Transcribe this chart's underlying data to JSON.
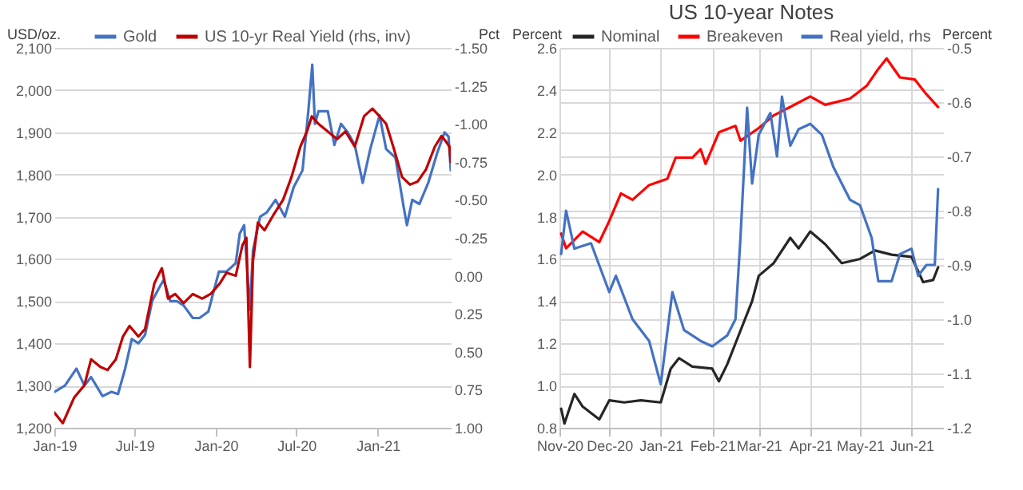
{
  "chart_data": [
    {
      "type": "line",
      "ylabel": "USD/oz.",
      "y2label": "Pct",
      "legend": "top",
      "grid": "y",
      "xlim": [
        "2019-01-01",
        "2021-06-15"
      ],
      "xticks": [
        {
          "value": "2019-01-01",
          "label": "Jan-19"
        },
        {
          "value": "2019-07-01",
          "label": "Jul-19"
        },
        {
          "value": "2020-01-01",
          "label": "Jan-20"
        },
        {
          "value": "2020-07-01",
          "label": "Jul-20"
        },
        {
          "value": "2021-01-01",
          "label": "Jan-21"
        }
      ],
      "ylim": [
        1200,
        2100
      ],
      "yticks": [
        {
          "value": 1200,
          "label": "1,200"
        },
        {
          "value": 1300,
          "label": "1,300"
        },
        {
          "value": 1400,
          "label": "1,400"
        },
        {
          "value": 1500,
          "label": "1,500"
        },
        {
          "value": 1600,
          "label": "1,600"
        },
        {
          "value": 1700,
          "label": "1,700"
        },
        {
          "value": 1800,
          "label": "1,800"
        },
        {
          "value": 1900,
          "label": "1,900"
        },
        {
          "value": 2000,
          "label": "2,000"
        },
        {
          "value": 2100,
          "label": "2,100"
        }
      ],
      "y2lim": [
        1.0,
        -1.5
      ],
      "y2ticks": [
        {
          "value": 1,
          "label": "1.00"
        },
        0.75,
        {
          "value": 0.5,
          "label": "0.50"
        },
        0.25,
        {
          "value": 0,
          "label": "0.00"
        },
        -0.25,
        {
          "value": -0.5,
          "label": "-0.50"
        },
        -0.75,
        {
          "value": -1,
          "label": "-1.00"
        },
        -1.25,
        {
          "value": -1.5,
          "label": "-1.50"
        }
      ],
      "series": [
        {
          "name": "Gold",
          "color": "#4472c4",
          "x": [
            "2019-01-01",
            "2019-01-25",
            "2019-02-20",
            "2019-03-10",
            "2019-03-25",
            "2019-04-20",
            "2019-05-10",
            "2019-05-25",
            "2019-06-10",
            "2019-06-25",
            "2019-07-10",
            "2019-07-25",
            "2019-08-10",
            "2019-08-25",
            "2019-09-05",
            "2019-09-20",
            "2019-10-05",
            "2019-10-20",
            "2019-11-10",
            "2019-11-25",
            "2019-12-15",
            "2020-01-08",
            "2020-01-25",
            "2020-02-15",
            "2020-02-24",
            "2020-03-05",
            "2020-03-18",
            "2020-03-25",
            "2020-04-10",
            "2020-04-25",
            "2020-05-15",
            "2020-06-05",
            "2020-06-25",
            "2020-07-15",
            "2020-07-28",
            "2020-08-06",
            "2020-08-12",
            "2020-08-20",
            "2020-09-10",
            "2020-09-25",
            "2020-10-10",
            "2020-10-25",
            "2020-11-10",
            "2020-11-28",
            "2020-12-15",
            "2021-01-05",
            "2021-01-20",
            "2021-02-10",
            "2021-03-01",
            "2021-03-08",
            "2021-03-20",
            "2021-04-05",
            "2021-04-25",
            "2021-05-15",
            "2021-06-01",
            "2021-06-10",
            "2021-06-15"
          ],
          "values": [
            1285,
            1300,
            1340,
            1300,
            1320,
            1275,
            1285,
            1280,
            1340,
            1410,
            1400,
            1420,
            1500,
            1530,
            1550,
            1500,
            1500,
            1490,
            1460,
            1460,
            1475,
            1570,
            1570,
            1590,
            1660,
            1680,
            1480,
            1620,
            1700,
            1710,
            1740,
            1700,
            1770,
            1810,
            1950,
            2060,
            1920,
            1950,
            1950,
            1870,
            1920,
            1900,
            1870,
            1780,
            1860,
            1940,
            1860,
            1840,
            1720,
            1680,
            1740,
            1730,
            1780,
            1850,
            1900,
            1890,
            1810
          ]
        },
        {
          "name": "US 10-yr Real Yield (rhs, inv)",
          "color": "#c00000",
          "axis": "y2",
          "x": [
            "2019-01-01",
            "2019-01-20",
            "2019-02-15",
            "2019-03-10",
            "2019-03-25",
            "2019-04-15",
            "2019-05-01",
            "2019-05-20",
            "2019-06-05",
            "2019-06-20",
            "2019-07-10",
            "2019-07-25",
            "2019-08-15",
            "2019-09-01",
            "2019-09-15",
            "2019-10-01",
            "2019-10-20",
            "2019-11-10",
            "2019-12-01",
            "2019-12-20",
            "2020-01-10",
            "2020-01-25",
            "2020-02-15",
            "2020-03-01",
            "2020-03-10",
            "2020-03-18",
            "2020-03-25",
            "2020-04-05",
            "2020-04-20",
            "2020-05-10",
            "2020-06-01",
            "2020-06-20",
            "2020-07-10",
            "2020-07-25",
            "2020-08-05",
            "2020-08-20",
            "2020-09-10",
            "2020-10-01",
            "2020-10-20",
            "2020-11-10",
            "2020-12-01",
            "2020-12-20",
            "2021-01-05",
            "2021-01-20",
            "2021-02-05",
            "2021-02-25",
            "2021-03-15",
            "2021-04-01",
            "2021-04-20",
            "2021-05-10",
            "2021-05-25",
            "2021-06-05",
            "2021-06-12",
            "2021-06-15"
          ],
          "values": [
            0.9,
            0.97,
            0.8,
            0.72,
            0.55,
            0.6,
            0.62,
            0.55,
            0.4,
            0.33,
            0.4,
            0.35,
            0.05,
            -0.05,
            0.15,
            0.12,
            0.18,
            0.12,
            0.15,
            0.12,
            0.05,
            -0.02,
            0.0,
            -0.2,
            -0.25,
            0.6,
            -0.1,
            -0.35,
            -0.3,
            -0.4,
            -0.5,
            -0.65,
            -0.85,
            -0.95,
            -1.05,
            -1.0,
            -0.95,
            -0.9,
            -0.95,
            -0.85,
            -1.05,
            -1.1,
            -1.05,
            -1.0,
            -0.85,
            -0.65,
            -0.6,
            -0.62,
            -0.7,
            -0.85,
            -0.92,
            -0.88,
            -0.85,
            -0.75
          ]
        }
      ]
    },
    {
      "type": "line",
      "title": "US 10-year Notes",
      "ylabel": "Percent",
      "y2label": "Percent",
      "legend": "top",
      "grid": true,
      "xlim": [
        "2020-11-01",
        "2021-06-20"
      ],
      "xticks": [
        {
          "value": "2020-11-01",
          "label": "Nov-20"
        },
        {
          "value": "2020-12-01",
          "label": "Dec-20"
        },
        {
          "value": "2021-01-01",
          "label": "Jan-21"
        },
        {
          "value": "2021-02-01",
          "label": "Feb-21"
        },
        {
          "value": "2021-03-01",
          "label": "Mar-21"
        },
        {
          "value": "2021-04-01",
          "label": "Apr-21"
        },
        {
          "value": "2021-05-01",
          "label": "May-21"
        },
        {
          "value": "2021-06-01",
          "label": "Jun-21"
        }
      ],
      "ylim": [
        0.8,
        2.6
      ],
      "yticks": [
        0.8,
        {
          "value": 1,
          "label": "1.0"
        },
        1.2,
        1.4,
        1.6,
        1.8,
        {
          "value": 2,
          "label": "2.0"
        },
        2.2,
        2.4,
        2.6
      ],
      "y2lim": [
        -1.2,
        -0.5
      ],
      "y2ticks": [
        -1.2,
        -1.1,
        {
          "value": -1,
          "label": "-1.0"
        },
        -0.9,
        -0.8,
        -0.7,
        -0.6,
        -0.5
      ],
      "series": [
        {
          "name": "Nominal",
          "color": "#262626",
          "x": [
            "2020-11-02",
            "2020-11-04",
            "2020-11-10",
            "2020-11-15",
            "2020-11-25",
            "2020-12-01",
            "2020-12-10",
            "2020-12-20",
            "2021-01-01",
            "2021-01-07",
            "2021-01-12",
            "2021-01-20",
            "2021-02-01",
            "2021-02-05",
            "2021-02-10",
            "2021-02-15",
            "2021-02-20",
            "2021-02-25",
            "2021-03-01",
            "2021-03-10",
            "2021-03-20",
            "2021-03-25",
            "2021-04-01",
            "2021-04-10",
            "2021-04-20",
            "2021-05-01",
            "2021-05-10",
            "2021-05-20",
            "2021-06-01",
            "2021-06-08",
            "2021-06-14",
            "2021-06-17"
          ],
          "values": [
            0.89,
            0.82,
            0.96,
            0.9,
            0.84,
            0.93,
            0.92,
            0.93,
            0.92,
            1.08,
            1.13,
            1.09,
            1.08,
            1.02,
            1.1,
            1.2,
            1.3,
            1.4,
            1.52,
            1.58,
            1.7,
            1.65,
            1.73,
            1.67,
            1.58,
            1.6,
            1.64,
            1.62,
            1.61,
            1.49,
            1.5,
            1.56
          ]
        },
        {
          "name": "Breakeven",
          "color": "#ff0000",
          "x": [
            "2020-11-02",
            "2020-11-05",
            "2020-11-15",
            "2020-11-25",
            "2020-12-01",
            "2020-12-08",
            "2020-12-15",
            "2020-12-25",
            "2021-01-05",
            "2021-01-10",
            "2021-01-20",
            "2021-01-25",
            "2021-01-28",
            "2021-02-05",
            "2021-02-15",
            "2021-02-18",
            "2021-03-01",
            "2021-03-10",
            "2021-03-20",
            "2021-04-01",
            "2021-04-10",
            "2021-04-25",
            "2021-05-05",
            "2021-05-12",
            "2021-05-17",
            "2021-05-25",
            "2021-06-03",
            "2021-06-10",
            "2021-06-17"
          ],
          "values": [
            1.72,
            1.65,
            1.73,
            1.68,
            1.78,
            1.91,
            1.88,
            1.95,
            1.98,
            2.08,
            2.08,
            2.12,
            2.05,
            2.2,
            2.23,
            2.16,
            2.22,
            2.28,
            2.32,
            2.37,
            2.33,
            2.36,
            2.42,
            2.5,
            2.55,
            2.46,
            2.45,
            2.38,
            2.32
          ]
        },
        {
          "name": "Real yield, rhs",
          "color": "#4472c4",
          "axis": "y2",
          "x": [
            "2020-11-02",
            "2020-11-05",
            "2020-11-10",
            "2020-11-20",
            "2020-12-01",
            "2020-12-05",
            "2020-12-15",
            "2020-12-25",
            "2021-01-01",
            "2021-01-08",
            "2021-01-15",
            "2021-01-25",
            "2021-02-01",
            "2021-02-10",
            "2021-02-15",
            "2021-02-18",
            "2021-02-22",
            "2021-02-25",
            "2021-03-01",
            "2021-03-08",
            "2021-03-12",
            "2021-03-15",
            "2021-03-20",
            "2021-03-25",
            "2021-04-01",
            "2021-04-08",
            "2021-04-15",
            "2021-04-25",
            "2021-05-01",
            "2021-05-08",
            "2021-05-12",
            "2021-05-20",
            "2021-05-25",
            "2021-06-01",
            "2021-06-05",
            "2021-06-10",
            "2021-06-15",
            "2021-06-17"
          ],
          "values": [
            -0.88,
            -0.8,
            -0.87,
            -0.86,
            -0.95,
            -0.92,
            -1.0,
            -1.04,
            -1.12,
            -0.95,
            -1.02,
            -1.04,
            -1.05,
            -1.03,
            -1.0,
            -0.85,
            -0.61,
            -0.75,
            -0.66,
            -0.62,
            -0.7,
            -0.59,
            -0.68,
            -0.65,
            -0.64,
            -0.66,
            -0.72,
            -0.78,
            -0.79,
            -0.85,
            -0.93,
            -0.93,
            -0.88,
            -0.87,
            -0.92,
            -0.9,
            -0.9,
            -0.76
          ]
        }
      ]
    }
  ]
}
